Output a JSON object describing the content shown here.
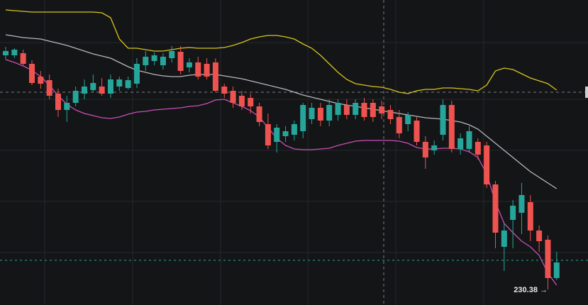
{
  "chart_data": {
    "type": "candlestick",
    "ylim": [
      228.2,
      271.2
    ],
    "up_color": "#26a69a",
    "down_color": "#ef5350",
    "open": [
      263.4,
      263.4,
      263.7,
      262.2,
      260.4,
      259.9,
      258.0,
      255.7,
      256.7,
      258.0,
      258.5,
      259.0,
      258.0,
      259.0,
      258.8,
      259.4,
      262.0,
      262.6,
      262.0,
      263.0,
      263.9,
      261.7,
      262.4,
      262.2,
      262.4,
      259.0,
      258.4,
      257.7,
      257.4,
      256.2,
      253.7,
      251.2,
      252.0,
      252.2,
      252.7,
      254.4,
      256.0,
      254.2,
      255.0,
      256.4,
      255.0,
      256.7,
      256.7,
      256.2,
      255.7,
      254.7,
      253.7,
      254.2,
      251.2,
      250.0,
      252.2,
      256.4,
      250.2,
      250.2,
      251.2,
      250.7,
      245.2,
      236.4,
      240.2,
      241.2,
      242.7,
      238.7,
      237.4,
      232.0
    ],
    "high": [
      264.6,
      264.4,
      264.2,
      262.7,
      261.2,
      260.7,
      258.7,
      257.7,
      259.0,
      260.0,
      260.7,
      260.2,
      260.7,
      260.4,
      260.4,
      263.0,
      264.0,
      263.8,
      263.7,
      264.7,
      264.7,
      263.0,
      263.2,
      263.0,
      263.0,
      259.4,
      259.0,
      258.4,
      258.0,
      256.7,
      255.2,
      253.7,
      253.4,
      254.2,
      256.7,
      256.7,
      256.7,
      257.2,
      257.2,
      257.2,
      257.2,
      257.4,
      257.2,
      257.0,
      256.4,
      255.7,
      255.4,
      254.7,
      252.0,
      251.4,
      257.2,
      257.0,
      252.4,
      253.4,
      251.7,
      251.2,
      245.7,
      239.7,
      243.0,
      245.4,
      243.7,
      239.4,
      238.0,
      235.7
    ],
    "low": [
      262.8,
      263.0,
      262.0,
      259.2,
      258.7,
      257.2,
      254.7,
      254.0,
      256.2,
      257.2,
      258.2,
      257.7,
      257.4,
      258.4,
      258.6,
      258.8,
      261.2,
      262.0,
      261.4,
      262.4,
      260.7,
      261.0,
      260.0,
      260.0,
      258.2,
      257.4,
      256.0,
      255.7,
      255.2,
      253.4,
      250.2,
      249.7,
      251.2,
      251.4,
      251.7,
      253.7,
      253.4,
      253.4,
      254.2,
      254.4,
      254.4,
      254.2,
      254.0,
      254.4,
      253.7,
      251.7,
      252.7,
      250.7,
      247.4,
      249.4,
      251.4,
      249.7,
      249.4,
      249.7,
      248.7,
      244.7,
      236.2,
      233.0,
      236.2,
      238.2,
      237.2,
      235.7,
      230.4,
      231.7
    ],
    "close": [
      264.0,
      264.2,
      262.2,
      259.5,
      259.4,
      257.7,
      255.7,
      256.7,
      258.4,
      259.0,
      259.5,
      258.0,
      260.0,
      260.0,
      259.9,
      262.2,
      263.2,
      263.4,
      263.2,
      264.0,
      261.2,
      262.4,
      260.4,
      260.4,
      258.4,
      258.0,
      256.7,
      256.2,
      256.2,
      254.0,
      250.7,
      253.2,
      252.7,
      253.7,
      256.4,
      256.0,
      254.2,
      256.4,
      256.7,
      255.0,
      256.7,
      254.7,
      254.7,
      255.2,
      254.4,
      252.4,
      255.0,
      251.2,
      249.0,
      250.7,
      256.4,
      250.2,
      251.7,
      252.7,
      249.4,
      245.2,
      238.4,
      238.7,
      242.2,
      243.7,
      238.7,
      237.2,
      232.0,
      234.2
    ],
    "bands": [
      {
        "color": "#d8c41e",
        "values": [
          269.8,
          269.7,
          269.6,
          269.5,
          269.5,
          269.5,
          269.5,
          269.5,
          269.5,
          269.5,
          269.5,
          269.4,
          268.7,
          265.7,
          264.4,
          264.4,
          264.2,
          264.0,
          264.0,
          264.2,
          264.4,
          264.5,
          264.4,
          264.4,
          264.4,
          264.5,
          264.8,
          265.2,
          265.7,
          266.0,
          266.2,
          266.2,
          266.0,
          265.7,
          265.0,
          264.4,
          263.4,
          262.2,
          261.0,
          260.0,
          259.4,
          259.2,
          259.0,
          258.9,
          258.6,
          258.2,
          258.0,
          258.4,
          258.6,
          258.6,
          258.8,
          258.8,
          258.7,
          258.6,
          258.4,
          259.2,
          261.2,
          261.6,
          261.4,
          260.8,
          260.2,
          259.8,
          259.4,
          258.5
        ]
      },
      {
        "color": "#b8b8bc",
        "values": [
          266.3,
          266.1,
          265.9,
          265.8,
          265.7,
          265.4,
          265.1,
          264.8,
          264.4,
          264.0,
          263.6,
          263.3,
          263.0,
          262.4,
          261.8,
          261.3,
          261.0,
          260.7,
          260.5,
          260.4,
          260.4,
          260.6,
          260.7,
          260.7,
          260.7,
          260.5,
          260.3,
          260.1,
          259.8,
          259.5,
          259.2,
          258.9,
          258.6,
          258.2,
          257.8,
          257.5,
          257.2,
          256.9,
          256.6,
          256.4,
          256.2,
          256.0,
          255.8,
          255.6,
          255.4,
          255.2,
          255.0,
          254.8,
          254.6,
          254.5,
          254.4,
          254.2,
          254.0,
          253.6,
          253.0,
          252.0,
          251.0,
          250.0,
          249.0,
          248.0,
          247.0,
          246.2,
          245.4,
          244.6
        ]
      },
      {
        "color": "#c94fb5",
        "values": [
          262.8,
          262.4,
          261.9,
          261.3,
          260.4,
          259.2,
          257.7,
          256.5,
          255.7,
          255.2,
          254.9,
          254.6,
          254.5,
          254.7,
          255.1,
          255.4,
          255.5,
          255.7,
          255.8,
          255.9,
          256.0,
          256.2,
          256.3,
          256.6,
          257.1,
          257.2,
          256.7,
          256.2,
          255.6,
          254.7,
          253.2,
          251.7,
          250.7,
          250.2,
          250.1,
          250.1,
          250.2,
          250.3,
          250.7,
          251.0,
          251.3,
          251.4,
          251.4,
          251.4,
          251.4,
          251.3,
          251.0,
          250.4,
          250.2,
          250.2,
          250.3,
          250.3,
          250.2,
          249.8,
          249.0,
          246.7,
          242.7,
          239.7,
          238.4,
          237.2,
          236.4,
          235.2,
          232.7,
          231.0
        ]
      }
    ],
    "annotation": {
      "text": "230.38 →",
      "value": 230.38
    }
  }
}
